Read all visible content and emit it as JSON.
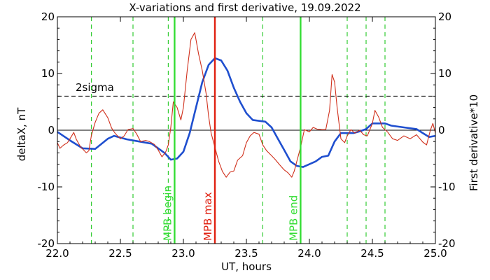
{
  "chart_data": {
    "type": "line",
    "title": "X-variations and first derivative, 19.09.2022",
    "xlabel": "UT, hours",
    "ylabel_left": "deltaX, nT",
    "ylabel_right": "First derivative*10",
    "xlim": [
      22.0,
      25.0
    ],
    "ylim": [
      -20,
      20
    ],
    "x_ticks": [
      "22.0",
      "22.5",
      "23.0",
      "23.5",
      "24.0",
      "24.5",
      "25.0"
    ],
    "y_ticks_left": [
      "-20",
      "-10",
      "0",
      "10",
      "20"
    ],
    "y_ticks_right": [
      "-20",
      "-10",
      "0",
      "10",
      "20"
    ],
    "sigma_label": "2sigma",
    "sigma_value": 6,
    "grid": false,
    "colors": {
      "deltax": "#1f4fcf",
      "derivative": "#d0301c",
      "mpb_green": "#33dd33",
      "mpb_max": "#e02010",
      "dashed_green": "#33cc33"
    },
    "series": [
      {
        "name": "deltaX, nT",
        "color": "#1f4fcf",
        "points": [
          [
            22.0,
            -0.3
          ],
          [
            22.1,
            -1.8
          ],
          [
            22.2,
            -3.2
          ],
          [
            22.3,
            -3.3
          ],
          [
            22.4,
            -1.5
          ],
          [
            22.45,
            -1.0
          ],
          [
            22.55,
            -1.6
          ],
          [
            22.65,
            -2.0
          ],
          [
            22.75,
            -2.4
          ],
          [
            22.85,
            -4.0
          ],
          [
            22.9,
            -5.2
          ],
          [
            22.95,
            -5.0
          ],
          [
            23.0,
            -3.8
          ],
          [
            23.05,
            -0.5
          ],
          [
            23.1,
            4.0
          ],
          [
            23.15,
            8.5
          ],
          [
            23.2,
            11.5
          ],
          [
            23.25,
            12.7
          ],
          [
            23.3,
            12.3
          ],
          [
            23.35,
            10.5
          ],
          [
            23.4,
            7.5
          ],
          [
            23.45,
            5.0
          ],
          [
            23.5,
            3.0
          ],
          [
            23.55,
            1.8
          ],
          [
            23.65,
            1.5
          ],
          [
            23.7,
            0.5
          ],
          [
            23.75,
            -1.5
          ],
          [
            23.8,
            -3.5
          ],
          [
            23.85,
            -5.5
          ],
          [
            23.9,
            -6.3
          ],
          [
            23.95,
            -6.5
          ],
          [
            24.05,
            -5.5
          ],
          [
            24.1,
            -4.7
          ],
          [
            24.15,
            -4.5
          ],
          [
            24.2,
            -2.0
          ],
          [
            24.25,
            -0.5
          ],
          [
            24.3,
            -0.5
          ],
          [
            24.35,
            -0.5
          ],
          [
            24.4,
            -0.2
          ],
          [
            24.45,
            0.2
          ],
          [
            24.5,
            1.2
          ],
          [
            24.6,
            1.2
          ],
          [
            24.65,
            0.8
          ],
          [
            24.75,
            0.5
          ],
          [
            24.85,
            0.2
          ],
          [
            24.9,
            -0.5
          ],
          [
            24.95,
            -1.2
          ],
          [
            25.0,
            -1.0
          ]
        ]
      },
      {
        "name": "First derivative*10",
        "color": "#d0301c",
        "points": [
          [
            22.0,
            -2.2
          ],
          [
            22.02,
            -3.2
          ],
          [
            22.05,
            -2.6
          ],
          [
            22.08,
            -2.2
          ],
          [
            22.1,
            -1.5
          ],
          [
            22.13,
            -0.4
          ],
          [
            22.15,
            -1.6
          ],
          [
            22.18,
            -2.8
          ],
          [
            22.2,
            -3.3
          ],
          [
            22.23,
            -4.0
          ],
          [
            22.25,
            -3.6
          ],
          [
            22.27,
            -0.9
          ],
          [
            22.3,
            1.4
          ],
          [
            22.33,
            3.0
          ],
          [
            22.36,
            3.6
          ],
          [
            22.4,
            2.2
          ],
          [
            22.43,
            0.4
          ],
          [
            22.46,
            -0.6
          ],
          [
            22.5,
            -1.5
          ],
          [
            22.53,
            -1.0
          ],
          [
            22.56,
            0.1
          ],
          [
            22.6,
            0.3
          ],
          [
            22.63,
            -0.7
          ],
          [
            22.66,
            -2.0
          ],
          [
            22.7,
            -1.8
          ],
          [
            22.73,
            -2.0
          ],
          [
            22.77,
            -2.5
          ],
          [
            22.8,
            -3.5
          ],
          [
            22.83,
            -4.7
          ],
          [
            22.86,
            -3.8
          ],
          [
            22.88,
            -2.6
          ],
          [
            22.9,
            0.5
          ],
          [
            22.92,
            5.0
          ],
          [
            22.95,
            4.0
          ],
          [
            22.98,
            1.8
          ],
          [
            23.0,
            4.0
          ],
          [
            23.03,
            10.5
          ],
          [
            23.06,
            16.0
          ],
          [
            23.09,
            17.2
          ],
          [
            23.12,
            13.5
          ],
          [
            23.15,
            10.5
          ],
          [
            23.18,
            6.5
          ],
          [
            23.2,
            2.5
          ],
          [
            23.22,
            -0.5
          ],
          [
            23.25,
            -3.0
          ],
          [
            23.28,
            -5.5
          ],
          [
            23.31,
            -7.3
          ],
          [
            23.34,
            -8.3
          ],
          [
            23.37,
            -7.4
          ],
          [
            23.4,
            -7.2
          ],
          [
            23.43,
            -5.3
          ],
          [
            23.47,
            -4.5
          ],
          [
            23.5,
            -2.2
          ],
          [
            23.53,
            -1.0
          ],
          [
            23.56,
            -0.4
          ],
          [
            23.6,
            -0.7
          ],
          [
            23.63,
            -2.6
          ],
          [
            23.66,
            -3.6
          ],
          [
            23.7,
            -4.5
          ],
          [
            23.73,
            -5.2
          ],
          [
            23.76,
            -6.0
          ],
          [
            23.8,
            -7.0
          ],
          [
            23.83,
            -7.5
          ],
          [
            23.86,
            -8.3
          ],
          [
            23.88,
            -7.2
          ],
          [
            23.9,
            -5.5
          ],
          [
            23.93,
            -3.0
          ],
          [
            23.96,
            0.1
          ],
          [
            24.0,
            -0.3
          ],
          [
            24.03,
            0.5
          ],
          [
            24.06,
            0.2
          ],
          [
            24.1,
            0.1
          ],
          [
            24.13,
            0.1
          ],
          [
            24.16,
            3.5
          ],
          [
            24.18,
            9.8
          ],
          [
            24.2,
            8.5
          ],
          [
            24.22,
            4.0
          ],
          [
            24.25,
            -1.5
          ],
          [
            24.28,
            -2.2
          ],
          [
            24.3,
            -1.0
          ],
          [
            24.33,
            0.1
          ],
          [
            24.36,
            -0.5
          ],
          [
            24.4,
            0.0
          ],
          [
            24.43,
            -0.8
          ],
          [
            24.46,
            -1.0
          ],
          [
            24.5,
            1.2
          ],
          [
            24.52,
            3.5
          ],
          [
            24.55,
            2.3
          ],
          [
            24.58,
            0.5
          ],
          [
            24.62,
            -0.3
          ],
          [
            24.66,
            -1.5
          ],
          [
            24.7,
            -1.8
          ],
          [
            24.75,
            -1.0
          ],
          [
            24.8,
            -1.5
          ],
          [
            24.85,
            -0.8
          ],
          [
            24.9,
            -2.1
          ],
          [
            24.93,
            -2.6
          ],
          [
            24.96,
            0.0
          ],
          [
            24.98,
            1.2
          ],
          [
            25.0,
            -0.5
          ]
        ]
      }
    ],
    "dashed_verticals": [
      22.27,
      22.6,
      22.88,
      23.63,
      24.3,
      24.45,
      24.6
    ],
    "markers": [
      {
        "x": 22.93,
        "label": "MPB begin",
        "color": "#33dd33"
      },
      {
        "x": 23.25,
        "label": "MPB max",
        "color": "#e02010"
      },
      {
        "x": 23.93,
        "label": "MPB end",
        "color": "#33dd33"
      }
    ]
  }
}
